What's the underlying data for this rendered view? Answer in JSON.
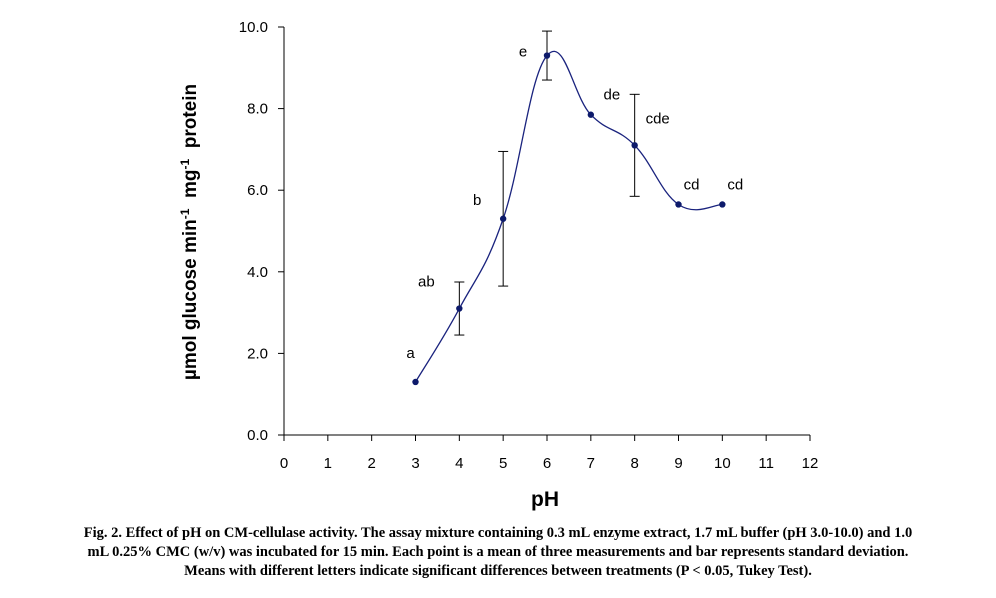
{
  "chart_data": {
    "type": "line",
    "title": "",
    "xlabel": "pH",
    "ylabel": "µmol glucose min",
    "ylabel_sup1": "-1",
    "ylabel_mid": "  mg",
    "ylabel_sup2": "-1",
    "ylabel_end": "  protein",
    "xlim": [
      0,
      12
    ],
    "ylim": [
      0,
      10
    ],
    "x_ticks": [
      0,
      1,
      2,
      3,
      4,
      5,
      6,
      7,
      8,
      9,
      10,
      11,
      12
    ],
    "x_tick_labels": [
      "0",
      "1",
      "2",
      "3",
      "4",
      "5",
      "6",
      "7",
      "8",
      "9",
      "10",
      "11",
      "12"
    ],
    "y_ticks": [
      0,
      2,
      4,
      6,
      8,
      10
    ],
    "y_tick_labels": [
      "0.0",
      "2.0",
      "4.0",
      "6.0",
      "8.0",
      "10.0"
    ],
    "grid": false,
    "line_color": "#1a237e",
    "marker_color": "#0d1a6b",
    "series": [
      {
        "name": "CM-cellulase activity",
        "x": [
          3,
          4,
          5,
          6,
          7,
          8,
          9,
          10
        ],
        "y": [
          1.3,
          3.1,
          5.3,
          9.3,
          7.85,
          7.1,
          5.65,
          5.65
        ],
        "error": [
          0.0,
          0.65,
          1.65,
          0.6,
          0.0,
          1.25,
          0.0,
          0.0
        ],
        "labels": [
          "a",
          "ab",
          "b",
          "e",
          "de",
          "cde",
          "cd",
          "cd"
        ]
      }
    ]
  },
  "caption": {
    "line1": "Fig. 2. Effect of pH on CM-cellulase activity. The assay mixture containing 0.3 mL enzyme extract, 1.7 mL buffer (pH 3.0-10.0) and 1.0",
    "line2": "mL 0.25% CMC (w/v) was incubated for 15 min. Each point is a mean of three measurements and bar represents standard deviation.",
    "line3": "Means with different letters indicate significant differences between treatments (P < 0.05, Tukey Test)."
  }
}
